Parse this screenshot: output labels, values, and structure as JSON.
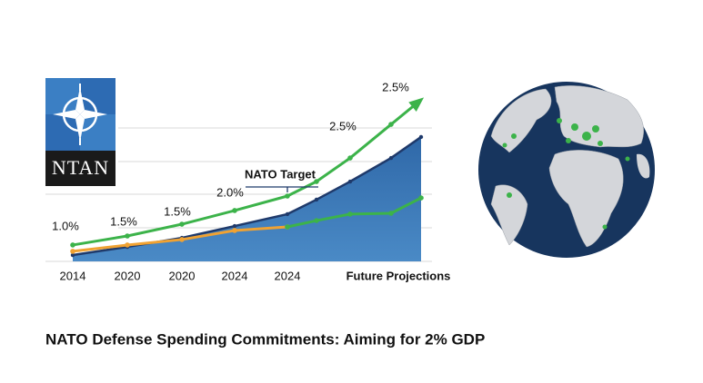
{
  "chart_data": {
    "type": "area",
    "title": "NATO Defense Spending Commitments: Aiming for 2% GDP",
    "logo_text": "NTAN",
    "categories": [
      "2014",
      "2020",
      "2020",
      "2024",
      "2024",
      null,
      null,
      "Future Projections",
      null
    ],
    "ylim": [
      0,
      100
    ],
    "series": [
      {
        "type": "area",
        "color": "#3a78b5",
        "line_color": "#1f3a6b",
        "values": [
          3.7,
          8.5,
          13.8,
          20.7,
          27.7,
          36.2,
          46.8,
          60.6,
          72.9
        ]
      },
      {
        "type": "line",
        "color": "#f0a232",
        "values": [
          5.9,
          9.6,
          12.8,
          18.1,
          20.2,
          null,
          null,
          null,
          null
        ]
      },
      {
        "type": "line",
        "color": "#3cb34a",
        "values": [
          null,
          null,
          null,
          null,
          20.2,
          23.9,
          27.7,
          28.2,
          37.2
        ]
      },
      {
        "type": "line",
        "color": "#3cb34a",
        "arrow": true,
        "values": [
          9.6,
          14.9,
          21.8,
          29.8,
          38.3,
          46.8,
          60.6,
          80.3,
          94.7
        ]
      }
    ],
    "annotations": [
      "1.0%",
      "1.5%",
      "1.5%",
      "2.0%",
      "2.5%",
      "2.5%"
    ],
    "target_label": "NATO Target"
  }
}
